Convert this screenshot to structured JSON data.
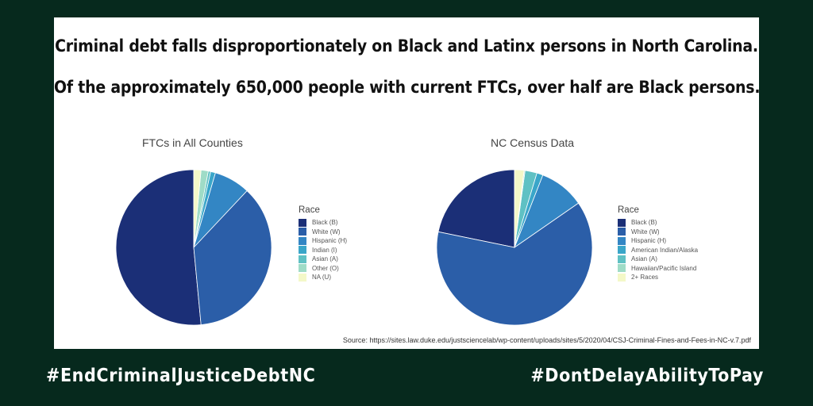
{
  "headline": {
    "line1": "Criminal debt falls disproportionately on Black and Latinx persons in North Carolina.",
    "line2": "Of the approximately 650,000 people with current FTCs, over half are Black persons."
  },
  "source": "Source: https://sites.law.duke.edu/justsciencelab/wp-content/uploads/sites/5/2020/04/CSJ-Criminal-Fines-and-Fees-in-NC-v.7.pdf",
  "hashtags": {
    "left": "#EndCriminalJusticeDebtNC",
    "right": "#DontDelayAbilityToPay"
  },
  "chart_data": [
    {
      "type": "pie",
      "title": "FTCs in All Counties",
      "legend_title": "Race",
      "legend_position": "right",
      "series": [
        {
          "label": "Black (B)",
          "value": 51.5,
          "color": "#1b2f77"
        },
        {
          "label": "White (W)",
          "value": 36.5,
          "color": "#2b5ea8"
        },
        {
          "label": "Hispanic (H)",
          "value": 7.5,
          "color": "#3386c4"
        },
        {
          "label": "Indian (I)",
          "value": 1.0,
          "color": "#3aa6c9"
        },
        {
          "label": "Asian (A)",
          "value": 0.5,
          "color": "#5fc1c4"
        },
        {
          "label": "Other (O)",
          "value": 1.5,
          "color": "#9fdcc7"
        },
        {
          "label": "NA (U)",
          "value": 1.5,
          "color": "#f4f8c8"
        }
      ]
    },
    {
      "type": "pie",
      "title": "NC Census Data",
      "legend_title": "Race",
      "legend_position": "right",
      "series": [
        {
          "label": "Black (B)",
          "value": 22.0,
          "color": "#1b2f77"
        },
        {
          "label": "White (W)",
          "value": 63.5,
          "color": "#2b5ea8"
        },
        {
          "label": "Hispanic (H)",
          "value": 9.5,
          "color": "#3386c4"
        },
        {
          "label": "American Indian/Alaska",
          "value": 1.3,
          "color": "#3aa6c9"
        },
        {
          "label": "Asian (A)",
          "value": 2.5,
          "color": "#5fc1c4"
        },
        {
          "label": "Hawaiian/Pacific Island",
          "value": 0.2,
          "color": "#9fdcc7"
        },
        {
          "label": "2+ Races",
          "value": 2.0,
          "color": "#f4f8c8"
        }
      ]
    }
  ]
}
